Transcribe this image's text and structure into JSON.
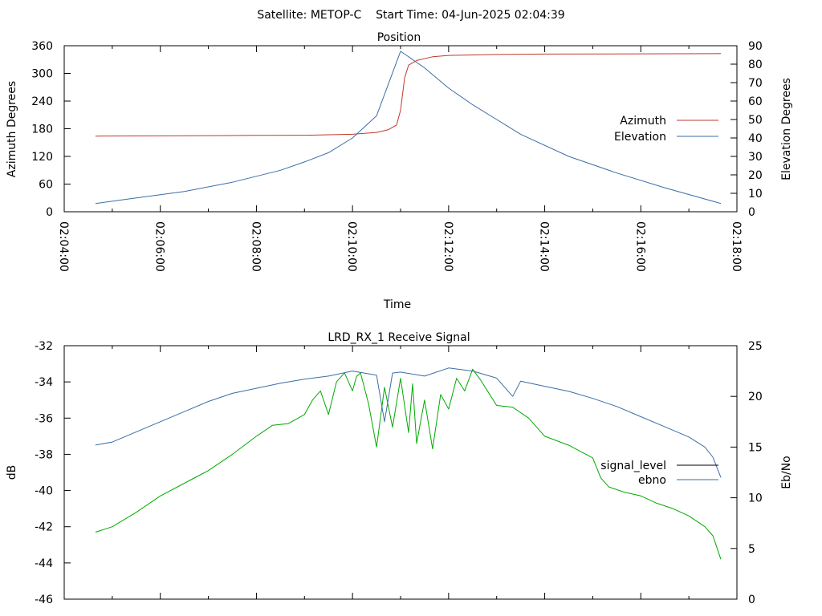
{
  "header": {
    "title": "Satellite: METOP-C    Start Time: 04-Jun-2025 02:04:39"
  },
  "chart_data": [
    {
      "type": "line",
      "title": "Position",
      "xlabel": "Time",
      "ylabel": "Azimuth Degrees",
      "y2label": "Elevation Degrees",
      "xlim": [
        "02:04:00",
        "02:18:00"
      ],
      "x_ticks": [
        "02:04:00",
        "02:06:00",
        "02:08:00",
        "02:10:00",
        "02:12:00",
        "02:14:00",
        "02:16:00",
        "02:18:00"
      ],
      "ylim": [
        0,
        360
      ],
      "y_ticks": [
        0,
        60,
        120,
        180,
        240,
        300,
        360
      ],
      "y2lim": [
        0,
        90
      ],
      "y2_ticks": [
        0,
        10,
        20,
        30,
        40,
        50,
        60,
        70,
        80,
        90
      ],
      "grid": false,
      "legend": "right",
      "series": [
        {
          "name": "Azimuth",
          "axis": "y",
          "color": "#c0392b",
          "x": [
            "02:04:39",
            "02:06:00",
            "02:07:00",
            "02:08:00",
            "02:09:00",
            "02:10:00",
            "02:10:30",
            "02:10:45",
            "02:10:55",
            "02:11:00",
            "02:11:05",
            "02:11:10",
            "02:11:20",
            "02:11:40",
            "02:12:00",
            "02:13:00",
            "02:14:00",
            "02:16:00",
            "02:17:40"
          ],
          "values": [
            164,
            164.5,
            165,
            165.5,
            166,
            168,
            172,
            178,
            188,
            220,
            290,
            318,
            328,
            336,
            339,
            341,
            342,
            342.5,
            343
          ]
        },
        {
          "name": "Elevation",
          "axis": "y2",
          "color": "#3a6ea5",
          "x": [
            "02:04:39",
            "02:05:30",
            "02:06:30",
            "02:07:30",
            "02:08:30",
            "02:09:00",
            "02:09:30",
            "02:10:00",
            "02:10:30",
            "02:11:00",
            "02:11:30",
            "02:12:00",
            "02:12:30",
            "02:13:00",
            "02:13:30",
            "02:14:30",
            "02:15:30",
            "02:16:30",
            "02:17:40"
          ],
          "values": [
            4.5,
            7.5,
            11,
            16,
            22.5,
            27,
            32,
            40,
            52,
            87,
            78,
            67,
            58,
            50,
            42,
            30,
            21,
            13,
            4.5
          ]
        }
      ]
    },
    {
      "type": "line",
      "title": "LRD_RX_1 Receive Signal",
      "xlabel": "",
      "ylabel": "dB",
      "y2label": "Eb/No",
      "xlim": [
        "02:04:00",
        "02:18:00"
      ],
      "ylim": [
        -46,
        -32
      ],
      "y_ticks": [
        -46,
        -44,
        -42,
        -40,
        -38,
        -36,
        -34,
        -32
      ],
      "y2lim": [
        0,
        25
      ],
      "y2_ticks": [
        0,
        5,
        10,
        15,
        20,
        25
      ],
      "grid": false,
      "legend": "right",
      "series": [
        {
          "name": "signal_level",
          "axis": "y",
          "color": "#00aa00",
          "x": [
            "02:04:39",
            "02:05:00",
            "02:05:30",
            "02:06:00",
            "02:06:30",
            "02:07:00",
            "02:07:30",
            "02:08:00",
            "02:08:20",
            "02:08:40",
            "02:09:00",
            "02:09:10",
            "02:09:20",
            "02:09:30",
            "02:09:40",
            "02:09:50",
            "02:10:00",
            "02:10:05",
            "02:10:10",
            "02:10:20",
            "02:10:30",
            "02:10:40",
            "02:10:50",
            "02:11:00",
            "02:11:10",
            "02:11:15",
            "02:11:20",
            "02:11:30",
            "02:11:40",
            "02:11:50",
            "02:12:00",
            "02:12:10",
            "02:12:20",
            "02:12:30",
            "02:12:40",
            "02:12:50",
            "02:13:00",
            "02:13:20",
            "02:13:40",
            "02:14:00",
            "02:14:30",
            "02:15:00",
            "02:15:10",
            "02:15:20",
            "02:15:40",
            "02:16:00",
            "02:16:20",
            "02:16:40",
            "02:17:00",
            "02:17:20",
            "02:17:30",
            "02:17:40"
          ],
          "values": [
            -42.3,
            -42,
            -41.2,
            -40.3,
            -39.6,
            -38.9,
            -38,
            -37,
            -36.4,
            -36.3,
            -35.8,
            -35,
            -34.5,
            -35.8,
            -34,
            -33.5,
            -34.5,
            -33.7,
            -33.5,
            -35.2,
            -37.6,
            -34.3,
            -36.5,
            -33.8,
            -36.8,
            -34.1,
            -37.4,
            -35,
            -37.7,
            -34.7,
            -35.5,
            -33.8,
            -34.5,
            -33.3,
            -33.9,
            -34.6,
            -35.3,
            -35.4,
            -36,
            -37,
            -37.5,
            -38.2,
            -39.3,
            -39.8,
            -40.1,
            -40.3,
            -40.7,
            -41,
            -41.4,
            -42,
            -42.5,
            -43.8
          ]
        },
        {
          "name": "ebno",
          "axis": "y2",
          "color": "#3a6ea5",
          "x": [
            "02:04:39",
            "02:05:00",
            "02:05:30",
            "02:06:00",
            "02:06:30",
            "02:07:00",
            "02:07:30",
            "02:08:00",
            "02:08:30",
            "02:09:00",
            "02:09:30",
            "02:10:00",
            "02:10:30",
            "02:10:40",
            "02:10:50",
            "02:11:00",
            "02:11:30",
            "02:12:00",
            "02:12:30",
            "02:13:00",
            "02:13:20",
            "02:13:30",
            "02:14:00",
            "02:14:30",
            "02:15:00",
            "02:15:30",
            "02:16:00",
            "02:16:30",
            "02:17:00",
            "02:17:20",
            "02:17:30",
            "02:17:40"
          ],
          "values": [
            15.2,
            15.5,
            16.5,
            17.5,
            18.5,
            19.5,
            20.3,
            20.8,
            21.3,
            21.7,
            22,
            22.5,
            22.1,
            17.5,
            22.3,
            22.4,
            22,
            22.8,
            22.5,
            21.8,
            20,
            21.5,
            21,
            20.5,
            19.8,
            19,
            18,
            17,
            16,
            15,
            14,
            12
          ]
        }
      ]
    }
  ]
}
